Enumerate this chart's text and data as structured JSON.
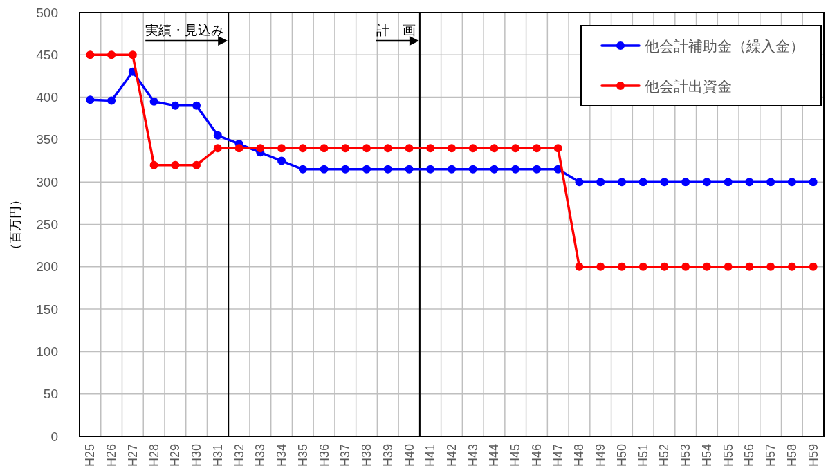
{
  "chart_data": {
    "type": "line",
    "categories": [
      "H25",
      "H26",
      "H27",
      "H28",
      "H29",
      "H30",
      "H31",
      "H32",
      "H33",
      "H34",
      "H35",
      "H36",
      "H37",
      "H38",
      "H39",
      "H40",
      "H41",
      "H42",
      "H43",
      "H44",
      "H45",
      "H46",
      "H47",
      "H48",
      "H49",
      "H50",
      "H51",
      "H52",
      "H53",
      "H54",
      "H55",
      "H56",
      "H57",
      "H58",
      "H59"
    ],
    "series": [
      {
        "name": "他会計補助金（繰入金）",
        "color": "#0000ff",
        "values": [
          397,
          396,
          430,
          395,
          390,
          390,
          355,
          345,
          335,
          325,
          315,
          315,
          315,
          315,
          315,
          315,
          315,
          315,
          315,
          315,
          315,
          315,
          315,
          300,
          300,
          300,
          300,
          300,
          300,
          300,
          300,
          300,
          300,
          300,
          300
        ]
      },
      {
        "name": "他会計出資金",
        "color": "#ff0000",
        "values": [
          450,
          450,
          450,
          320,
          320,
          320,
          340,
          340,
          340,
          340,
          340,
          340,
          340,
          340,
          340,
          340,
          340,
          340,
          340,
          340,
          340,
          340,
          340,
          200,
          200,
          200,
          200,
          200,
          200,
          200,
          200,
          200,
          200,
          200,
          200
        ]
      }
    ],
    "ylabel": "（百万円）",
    "ylim": [
      0,
      500
    ],
    "yticks": [
      0,
      50,
      100,
      150,
      200,
      250,
      300,
      350,
      400,
      450,
      500
    ],
    "annotations": [
      "実績・見込み",
      "計　画"
    ],
    "grid": true,
    "legend": "top right",
    "marker": "circle",
    "line_style": "solid"
  }
}
